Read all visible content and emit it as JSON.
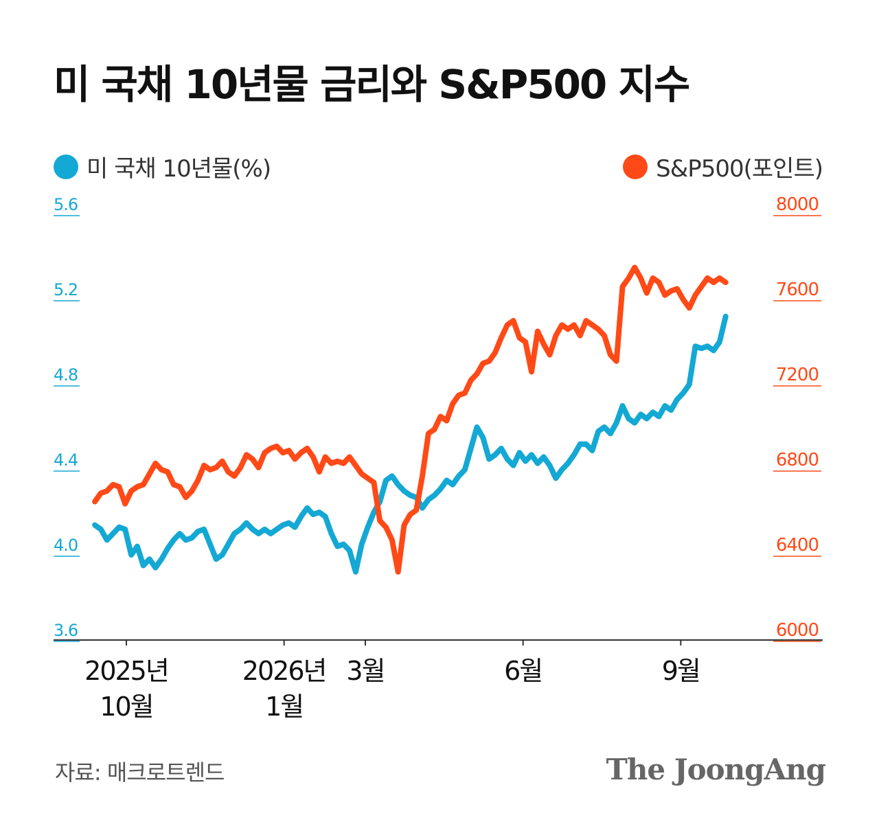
{
  "title": "미 국채 10년물 금리와 S&P500 지수",
  "legend": {
    "left_label": "미 국채 10년물(%)",
    "right_label": "S&P500(포인트)"
  },
  "colors": {
    "treasury": "#14a8d4",
    "sp500": "#ff4a17",
    "axis": "#333333"
  },
  "source": "자료: 매크로트렌드",
  "brand": "The JoongAng",
  "chart_data": {
    "type": "line",
    "title": "미 국채 10년물 금리와 S&P500 지수",
    "x_ticks": [
      {
        "x": 2.6,
        "lines": [
          "2025년",
          "10월"
        ]
      },
      {
        "x": 15.6,
        "lines": [
          "2026년",
          "1월"
        ]
      },
      {
        "x": 22.3,
        "lines": [
          "3월"
        ]
      },
      {
        "x": 35.3,
        "lines": [
          "6월"
        ]
      },
      {
        "x": 48.3,
        "lines": [
          "9월"
        ]
      }
    ],
    "x_range": [
      -3.4,
      60
    ],
    "left_axis": {
      "label": "미 국채 10년물(%)",
      "min": 3.6,
      "max": 5.6,
      "ticks": [
        "3.6",
        "4.0",
        "4.4",
        "4.8",
        "5.2",
        "5.6"
      ]
    },
    "right_axis": {
      "label": "S&P500(포인트)",
      "min": 6000,
      "max": 8000,
      "ticks": [
        "6000",
        "6400",
        "6800",
        "7200",
        "7600",
        "8000"
      ]
    },
    "series": [
      {
        "name": "미 국채 10년물(%)",
        "axis": "left",
        "x": [
          0,
          0.5,
          1,
          1.5,
          2,
          2.5,
          3,
          3.5,
          4,
          4.5,
          5,
          5.5,
          6,
          6.5,
          7,
          7.5,
          8,
          8.5,
          9,
          9.5,
          10,
          10.5,
          11,
          11.5,
          12,
          12.5,
          13,
          13.5,
          14,
          14.5,
          15,
          15.5,
          16,
          16.5,
          17,
          17.5,
          18,
          18.5,
          19,
          19.5,
          20,
          20.5,
          21,
          21.5,
          22,
          22.5,
          23,
          23.5,
          24,
          24.5,
          25,
          25.5,
          26,
          26.5,
          27,
          27.5,
          28,
          28.5,
          29,
          29.5,
          30,
          30.5,
          31,
          31.5,
          32,
          32.5,
          33,
          33.5,
          34,
          34.5,
          35,
          35.5,
          36,
          36.5,
          37,
          37.5,
          38,
          38.5,
          39,
          39.5,
          40,
          40.5,
          41,
          41.5,
          42,
          42.5,
          43,
          43.5,
          44,
          44.5,
          45,
          45.5,
          46,
          46.5,
          47,
          47.5,
          48,
          48.5,
          49,
          49.5,
          50,
          50.5,
          51,
          51.5,
          52
        ],
        "values": [
          4.14,
          4.12,
          4.07,
          4.1,
          4.13,
          4.12,
          4.0,
          4.04,
          3.95,
          3.98,
          3.94,
          3.98,
          4.03,
          4.07,
          4.1,
          4.07,
          4.08,
          4.11,
          4.12,
          4.05,
          3.98,
          4.0,
          4.05,
          4.1,
          4.12,
          4.15,
          4.12,
          4.1,
          4.12,
          4.1,
          4.12,
          4.14,
          4.15,
          4.13,
          4.18,
          4.22,
          4.19,
          4.2,
          4.18,
          4.1,
          4.04,
          4.05,
          4.02,
          3.92,
          4.05,
          4.13,
          4.2,
          4.25,
          4.35,
          4.37,
          4.33,
          4.3,
          4.28,
          4.27,
          4.22,
          4.26,
          4.28,
          4.31,
          4.35,
          4.33,
          4.37,
          4.4,
          4.5,
          4.6,
          4.55,
          4.45,
          4.47,
          4.5,
          4.45,
          4.42,
          4.48,
          4.44,
          4.47,
          4.43,
          4.46,
          4.42,
          4.36,
          4.4,
          4.43,
          4.47,
          4.52,
          4.52,
          4.49,
          4.58,
          4.6,
          4.57,
          4.62,
          4.7,
          4.64,
          4.62,
          4.66,
          4.64,
          4.67,
          4.65,
          4.7,
          4.68,
          4.73,
          4.76,
          4.8,
          4.98,
          4.97,
          4.98,
          4.96,
          5.0,
          5.12
        ]
      },
      {
        "name": "S&P500(포인트)",
        "axis": "right",
        "x": [
          0,
          0.5,
          1,
          1.5,
          2,
          2.5,
          3,
          3.5,
          4,
          4.5,
          5,
          5.5,
          6,
          6.5,
          7,
          7.5,
          8,
          8.5,
          9,
          9.5,
          10,
          10.5,
          11,
          11.5,
          12,
          12.5,
          13,
          13.5,
          14,
          14.5,
          15,
          15.5,
          16,
          16.5,
          17,
          17.5,
          18,
          18.5,
          19,
          19.5,
          20,
          20.5,
          21,
          21.5,
          22,
          22.5,
          23,
          23.5,
          24,
          24.5,
          25,
          25.5,
          26,
          26.5,
          27,
          27.5,
          28,
          28.5,
          29,
          29.5,
          30,
          30.5,
          31,
          31.5,
          32,
          32.5,
          33,
          33.5,
          34,
          34.5,
          35,
          35.5,
          36,
          36.5,
          37,
          37.5,
          38,
          38.5,
          39,
          39.5,
          40,
          40.5,
          41,
          41.5,
          42,
          42.5,
          43,
          43.5,
          44,
          44.5,
          45,
          45.5,
          46,
          46.5,
          47,
          47.5,
          48,
          48.5,
          49,
          49.5,
          50,
          50.5,
          51,
          51.5,
          52
        ],
        "values": [
          6650,
          6690,
          6700,
          6730,
          6720,
          6640,
          6700,
          6720,
          6730,
          6780,
          6830,
          6800,
          6790,
          6730,
          6720,
          6670,
          6700,
          6750,
          6820,
          6800,
          6810,
          6840,
          6790,
          6770,
          6810,
          6870,
          6850,
          6810,
          6880,
          6900,
          6910,
          6880,
          6890,
          6850,
          6880,
          6900,
          6860,
          6790,
          6860,
          6830,
          6840,
          6830,
          6860,
          6820,
          6780,
          6760,
          6740,
          6560,
          6530,
          6470,
          6320,
          6540,
          6590,
          6610,
          6770,
          6970,
          6990,
          7050,
          7030,
          7110,
          7150,
          7160,
          7220,
          7250,
          7300,
          7310,
          7350,
          7420,
          7480,
          7500,
          7420,
          7400,
          7260,
          7450,
          7390,
          7340,
          7430,
          7480,
          7460,
          7480,
          7430,
          7500,
          7480,
          7460,
          7430,
          7340,
          7310,
          7660,
          7700,
          7750,
          7700,
          7630,
          7700,
          7680,
          7620,
          7640,
          7650,
          7600,
          7560,
          7620,
          7660,
          7700,
          7680,
          7700,
          7680
        ]
      }
    ]
  }
}
